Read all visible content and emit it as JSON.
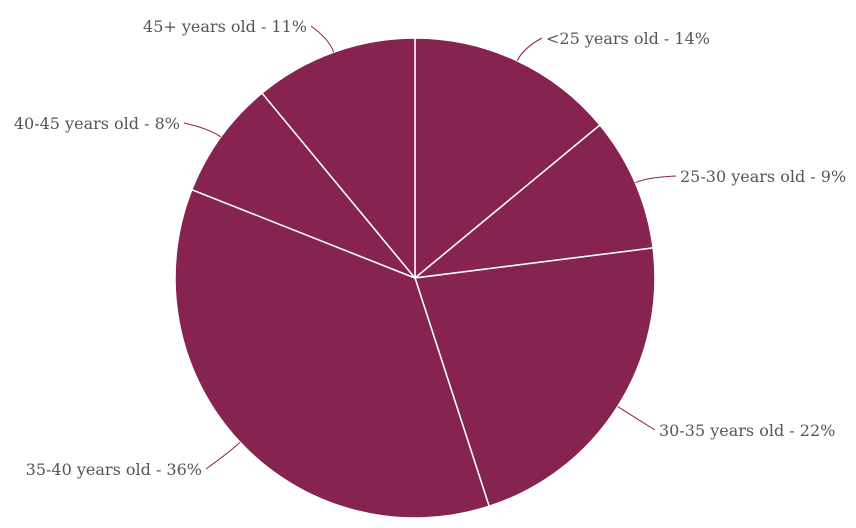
{
  "chart_data": {
    "type": "pie",
    "title": "",
    "slice_color": "#862350",
    "slices": [
      {
        "label": "<25 years old - 14%",
        "category": "<25 years old",
        "value": 14
      },
      {
        "label": "25-30 years old - 9%",
        "category": "25-30 years old",
        "value": 9
      },
      {
        "label": "30-35 years old - 22%",
        "category": "30-35 years old",
        "value": 22
      },
      {
        "label": "35-40 years old - 36%",
        "category": "35-40 years old",
        "value": 36
      },
      {
        "label": "40-45 years old - 8%",
        "category": "40-45 years old",
        "value": 8
      },
      {
        "label": "45+ years old - 11%",
        "category": "45+ years old",
        "value": 11
      }
    ],
    "legend": "none"
  }
}
